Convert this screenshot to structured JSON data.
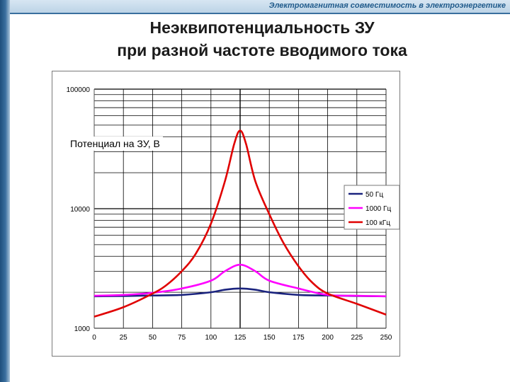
{
  "header": {
    "banner": "Электромагнитная совместимость в электроэнергетике"
  },
  "slide": {
    "title_line1": "Неэквипотенциальность ЗУ",
    "title_line2": "при разной частоте вводимого тока"
  },
  "colors": {
    "series_50": "#1a237e",
    "series_1000": "#ff00ff",
    "series_100k": "#e00000",
    "grid": "#000000",
    "banner_accent": "#3a6f9e"
  },
  "chart_data": {
    "type": "line",
    "title": "",
    "xlabel": "",
    "ylabel": "Потенциал на ЗУ, В",
    "yscale": "log",
    "xlim": [
      0,
      250
    ],
    "ylim": [
      1000,
      100000
    ],
    "grid": true,
    "legend_position": "right",
    "x_ticks": [
      0,
      25,
      50,
      75,
      100,
      125,
      150,
      175,
      200,
      225,
      250
    ],
    "y_ticks": [
      1000,
      10000,
      100000
    ],
    "series": [
      {
        "name": "50 Гц",
        "color": "#1a237e",
        "x": [
          0,
          25,
          50,
          75,
          100,
          112,
          125,
          138,
          150,
          175,
          200,
          225,
          250
        ],
        "y": [
          1850,
          1860,
          1880,
          1900,
          2000,
          2100,
          2150,
          2100,
          2000,
          1900,
          1880,
          1860,
          1850
        ]
      },
      {
        "name": "1000 Гц",
        "color": "#ff00ff",
        "x": [
          0,
          25,
          50,
          75,
          100,
          112,
          125,
          138,
          150,
          175,
          200,
          225,
          250
        ],
        "y": [
          1870,
          1900,
          1980,
          2150,
          2500,
          3000,
          3400,
          3000,
          2500,
          2150,
          1900,
          1870,
          1850
        ]
      },
      {
        "name": "100 кГц",
        "color": "#e00000",
        "x": [
          0,
          25,
          50,
          62,
          75,
          87,
          100,
          112,
          120,
          125,
          130,
          138,
          150,
          162,
          175,
          187,
          200,
          225,
          250
        ],
        "y": [
          1250,
          1500,
          1950,
          2300,
          3000,
          4200,
          7500,
          17000,
          35000,
          45000,
          35000,
          17000,
          9000,
          5200,
          3300,
          2400,
          1950,
          1600,
          1300
        ]
      }
    ]
  }
}
